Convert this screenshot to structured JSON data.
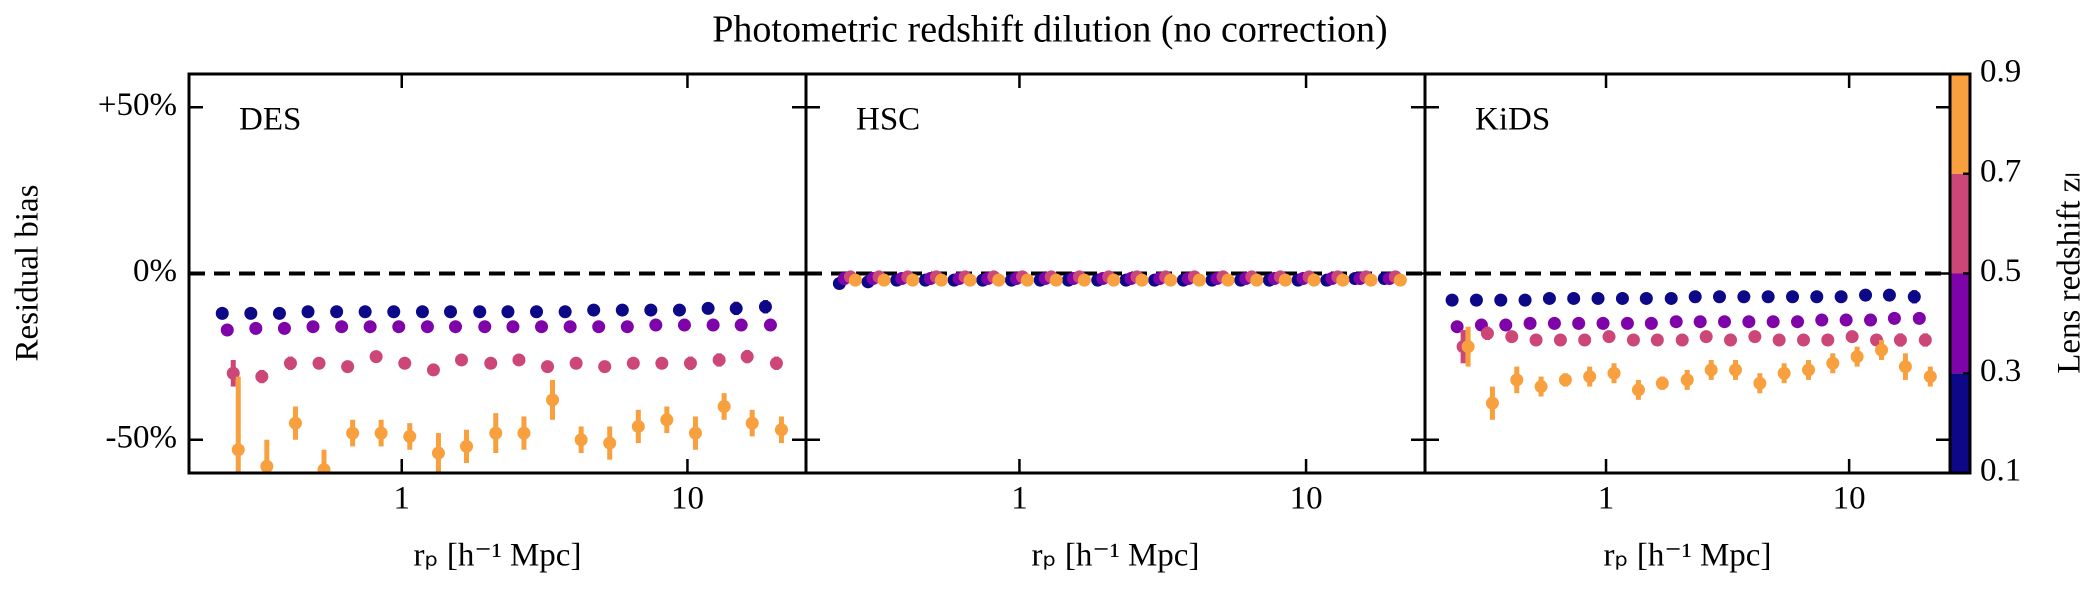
{
  "title": "Photometric redshift dilution (no correction)",
  "ylabel": "Residual bias",
  "colorbar": {
    "label": "Lens redshift zₗ",
    "lim": [
      0.1,
      0.9
    ],
    "ticks": [
      0.1,
      0.3,
      0.5,
      0.7,
      0.9
    ],
    "colors": [
      "#0d0887",
      "#7e03a8",
      "#cc4778",
      "#f89f3e"
    ]
  },
  "chart_data": [
    {
      "type": "errorbar",
      "label": "DES",
      "xlabel": "rₚ [h⁻¹ Mpc]",
      "log_x": true,
      "x": [
        0.251,
        0.316,
        0.398,
        0.501,
        0.631,
        0.794,
        1,
        1.26,
        1.58,
        2,
        2.51,
        3.16,
        3.98,
        5.01,
        6.31,
        7.94,
        10,
        12.6,
        15.8,
        20
      ],
      "xlim": [
        0.18,
        26
      ],
      "xticks": [
        1,
        10
      ],
      "ylim": [
        -60,
        60
      ],
      "yticks": [
        {
          "value": 50,
          "label": "+50%"
        },
        {
          "value": 0,
          "label": "0%"
        },
        {
          "value": -50,
          "label": "-50%"
        }
      ],
      "hline": 0,
      "series": [
        {
          "color": "#0d0887",
          "values": [
            -12,
            -12,
            -12,
            -11.5,
            -11.5,
            -11.5,
            -11.5,
            -11.5,
            -11.5,
            -11.5,
            -11.5,
            -11.5,
            -11.5,
            -11,
            -11,
            -11,
            -11,
            -10.5,
            -10.5,
            -10
          ],
          "errors": [
            1,
            1,
            1,
            1,
            1,
            1,
            1,
            1,
            1,
            1,
            1,
            1,
            1,
            1,
            1,
            1,
            1.5,
            1.5,
            2,
            2
          ]
        },
        {
          "color": "#7e03a8",
          "values": [
            -17,
            -16.5,
            -16.5,
            -16,
            -16,
            -16,
            -16,
            -16,
            -16,
            -16,
            -16,
            -16,
            -16,
            -16,
            -16,
            -15.5,
            -15.5,
            -15.5,
            -15.5,
            -15.5
          ],
          "errors": [
            1,
            1,
            1,
            1,
            1,
            1,
            1,
            1,
            1,
            1,
            1,
            1,
            1,
            1,
            1,
            1,
            1,
            1,
            1,
            1
          ]
        },
        {
          "color": "#cc4778",
          "values": [
            -30,
            -31,
            -27,
            -27,
            -28,
            -25,
            -27,
            -29,
            -26,
            -27,
            -26,
            -28,
            -27,
            -28,
            -27,
            -27,
            -27,
            -26,
            -25,
            -27
          ],
          "errors": [
            4,
            2,
            2,
            1.5,
            1.5,
            1.5,
            1.5,
            1.5,
            1.5,
            1.5,
            1.5,
            1.5,
            1.5,
            1.5,
            1.5,
            1.5,
            2,
            2,
            2,
            2
          ]
        },
        {
          "color": "#f89f3e",
          "values": [
            -53,
            -58,
            -45,
            -59,
            -48,
            -48,
            -49,
            -54,
            -52,
            -48,
            -48,
            -38,
            -50,
            -51,
            -46,
            -44,
            -48,
            -40,
            -45,
            -47
          ],
          "errors": [
            22,
            8,
            5,
            6,
            4,
            4,
            4,
            6,
            5,
            6,
            5,
            6,
            4,
            5,
            5,
            4,
            5,
            4,
            4,
            4
          ]
        }
      ]
    },
    {
      "type": "errorbar",
      "label": "HSC",
      "xlabel": "rₚ [h⁻¹ Mpc]",
      "log_x": true,
      "x": [
        0.251,
        0.316,
        0.398,
        0.501,
        0.631,
        0.794,
        1,
        1.26,
        1.58,
        2,
        2.51,
        3.16,
        3.98,
        5.01,
        6.31,
        7.94,
        10,
        12.6,
        15.8,
        20
      ],
      "xlim": [
        0.18,
        26
      ],
      "xticks": [
        1,
        10
      ],
      "ylim": [
        -60,
        60
      ],
      "hline": 0,
      "series": [
        {
          "color": "#0d0887",
          "values": [
            -3,
            -2.5,
            -2,
            -2,
            -2,
            -2,
            -2,
            -2,
            -2,
            -2,
            -2,
            -2,
            -2,
            -2,
            -2,
            -2,
            -2,
            -2,
            -1.5,
            -1.5
          ],
          "errors": [
            1,
            1,
            1,
            1,
            1,
            1,
            1,
            1,
            1,
            1,
            1,
            1,
            1,
            1,
            1,
            1,
            1,
            1,
            1,
            1
          ]
        },
        {
          "color": "#7e03a8",
          "values": [
            -1.5,
            -1.5,
            -1.5,
            -1.5,
            -1.5,
            -1.5,
            -1.5,
            -1.5,
            -1.5,
            -1.5,
            -1.5,
            -1.5,
            -1.5,
            -1.5,
            -1.5,
            -1.5,
            -1.5,
            -1.5,
            -1.5,
            -1.5
          ],
          "errors": [
            1,
            1,
            1,
            1,
            1,
            1,
            1,
            1,
            1,
            1,
            1,
            1,
            1,
            1,
            1,
            1,
            1,
            1,
            1,
            1
          ]
        },
        {
          "color": "#cc4778",
          "values": [
            -1,
            -1,
            -1,
            -1,
            -1,
            -1,
            -1,
            -1,
            -1,
            -1,
            -1,
            -1,
            -1,
            -1,
            -1,
            -1,
            -1,
            -1,
            -1,
            -1
          ],
          "errors": [
            1,
            1,
            1,
            1,
            1,
            1,
            1,
            1,
            1,
            1,
            1,
            1,
            1,
            1,
            1,
            1,
            1,
            1,
            1,
            1
          ]
        },
        {
          "color": "#f89f3e",
          "values": [
            -2,
            -2,
            -2,
            -2,
            -2,
            -2,
            -2,
            -2,
            -2,
            -2,
            -2,
            -2,
            -2,
            -2,
            -2,
            -2,
            -2,
            -2,
            -2,
            -2
          ],
          "errors": [
            1,
            1,
            1,
            1,
            1,
            1,
            1,
            1,
            1,
            1,
            1,
            1,
            1,
            1,
            1,
            1,
            1,
            1,
            1,
            1
          ]
        }
      ]
    },
    {
      "type": "errorbar",
      "label": "KiDS",
      "xlabel": "rₚ [h⁻¹ Mpc]",
      "log_x": true,
      "x": [
        0.251,
        0.316,
        0.398,
        0.501,
        0.631,
        0.794,
        1,
        1.26,
        1.58,
        2,
        2.51,
        3.16,
        3.98,
        5.01,
        6.31,
        7.94,
        10,
        12.6,
        15.8,
        20
      ],
      "xlim": [
        0.18,
        26
      ],
      "xticks": [
        1,
        10
      ],
      "ylim": [
        -60,
        60
      ],
      "hline": 0,
      "series": [
        {
          "color": "#0d0887",
          "values": [
            -8,
            -8,
            -8,
            -8,
            -7.5,
            -7.5,
            -7.5,
            -7.5,
            -7.5,
            -7.5,
            -7,
            -7,
            -7,
            -7,
            -7,
            -7,
            -7,
            -6.5,
            -6.5,
            -7
          ],
          "errors": [
            1,
            1,
            1,
            1,
            1,
            1,
            1,
            1,
            1,
            1,
            1,
            1,
            1,
            1,
            1,
            1,
            1,
            1.5,
            1.5,
            2
          ]
        },
        {
          "color": "#7e03a8",
          "values": [
            -16,
            -15.5,
            -15.5,
            -15,
            -15,
            -15,
            -15,
            -15,
            -15,
            -14.5,
            -14.5,
            -14.5,
            -14.5,
            -14.5,
            -14.5,
            -14,
            -14,
            -14,
            -13.5,
            -13.5
          ],
          "errors": [
            1,
            1,
            1,
            1,
            1,
            1,
            1,
            1,
            1,
            1,
            1,
            1,
            1,
            1,
            1,
            1,
            1,
            1,
            1,
            1
          ]
        },
        {
          "color": "#cc4778",
          "values": [
            -22,
            -18,
            -19,
            -20,
            -20,
            -20,
            -19,
            -20,
            -20,
            -20,
            -19,
            -20,
            -19,
            -20,
            -20,
            -20,
            -19,
            -20,
            -20,
            -20
          ],
          "errors": [
            5,
            2,
            1.5,
            1.5,
            1.5,
            1.5,
            1.5,
            1.5,
            1.5,
            1.5,
            1.5,
            1.5,
            1.5,
            1.5,
            1.5,
            1.5,
            1.5,
            1.5,
            2,
            2
          ]
        },
        {
          "color": "#f89f3e",
          "values": [
            -22,
            -39,
            -32,
            -34,
            -32,
            -31,
            -30,
            -35,
            -33,
            -32,
            -29,
            -29,
            -33,
            -30,
            -29,
            -27,
            -25,
            -23,
            -28,
            -31
          ],
          "errors": [
            6,
            5,
            4,
            3,
            2,
            3,
            3,
            3,
            2,
            3,
            3,
            3,
            3,
            3,
            3,
            3,
            3,
            3,
            4,
            3
          ]
        }
      ]
    }
  ]
}
